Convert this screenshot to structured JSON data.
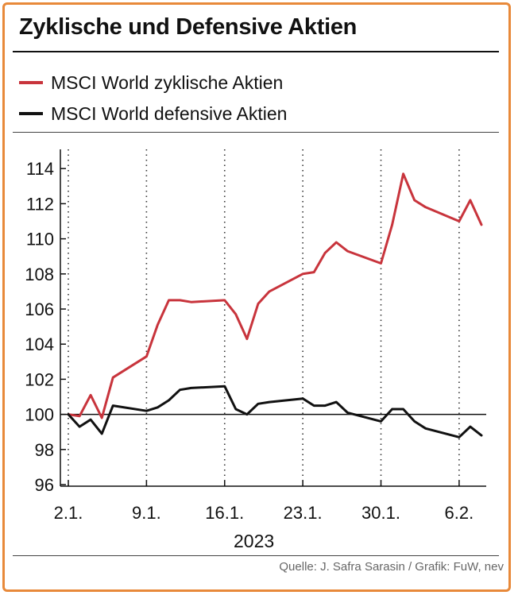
{
  "title": "Zyklische und Defensive Aktien",
  "legend": [
    {
      "label": "MSCI World zyklische Aktien",
      "color": "#c8343c"
    },
    {
      "label": "MSCI World defensive Aktien",
      "color": "#111111"
    }
  ],
  "year": "2023",
  "source": "Quelle: J. Safra Sarasin / Grafik: FuW, nev",
  "colors": {
    "frame": "#e8893a",
    "cyclical": "#c8343c",
    "defensive": "#111111"
  },
  "chart_data": {
    "type": "line",
    "xlabel": "",
    "ylabel": "",
    "ylim": [
      96,
      115
    ],
    "yticks": [
      96,
      98,
      100,
      102,
      104,
      106,
      108,
      110,
      112,
      114
    ],
    "xticks": [
      "2.1.",
      "9.1.",
      "16.1.",
      "23.1.",
      "30.1.",
      "6.2."
    ],
    "xlim": [
      0,
      37
    ],
    "xtick_days": [
      0,
      7,
      14,
      21,
      28,
      35
    ],
    "reference_line": 100,
    "grid": "vertical dotted",
    "series": [
      {
        "name": "MSCI World zyklische Aktien",
        "color": "#c8343c",
        "x": [
          0,
          1,
          2,
          3,
          4,
          7,
          8,
          9,
          10,
          11,
          14,
          15,
          16,
          17,
          18,
          21,
          22,
          23,
          24,
          25,
          28,
          29,
          30,
          31,
          32,
          35,
          36,
          37
        ],
        "y": [
          100.0,
          99.9,
          101.1,
          99.8,
          102.1,
          103.3,
          105.1,
          106.5,
          106.5,
          106.4,
          106.5,
          105.7,
          104.3,
          106.3,
          107.0,
          108.0,
          108.1,
          109.2,
          109.8,
          109.3,
          108.6,
          110.8,
          113.7,
          112.2,
          111.8,
          111.0,
          112.2,
          110.8
        ]
      },
      {
        "name": "MSCI World defensive Aktien",
        "color": "#111111",
        "x": [
          0,
          1,
          2,
          3,
          4,
          7,
          8,
          9,
          10,
          11,
          14,
          15,
          16,
          17,
          18,
          21,
          22,
          23,
          24,
          25,
          28,
          29,
          30,
          31,
          32,
          35,
          36,
          37
        ],
        "y": [
          100.0,
          99.3,
          99.7,
          98.9,
          100.5,
          100.2,
          100.4,
          100.8,
          101.4,
          101.5,
          101.6,
          100.3,
          100.0,
          100.6,
          100.7,
          100.9,
          100.5,
          100.5,
          100.7,
          100.1,
          99.6,
          100.3,
          100.3,
          99.6,
          99.2,
          98.7,
          99.3,
          98.8
        ]
      }
    ]
  }
}
